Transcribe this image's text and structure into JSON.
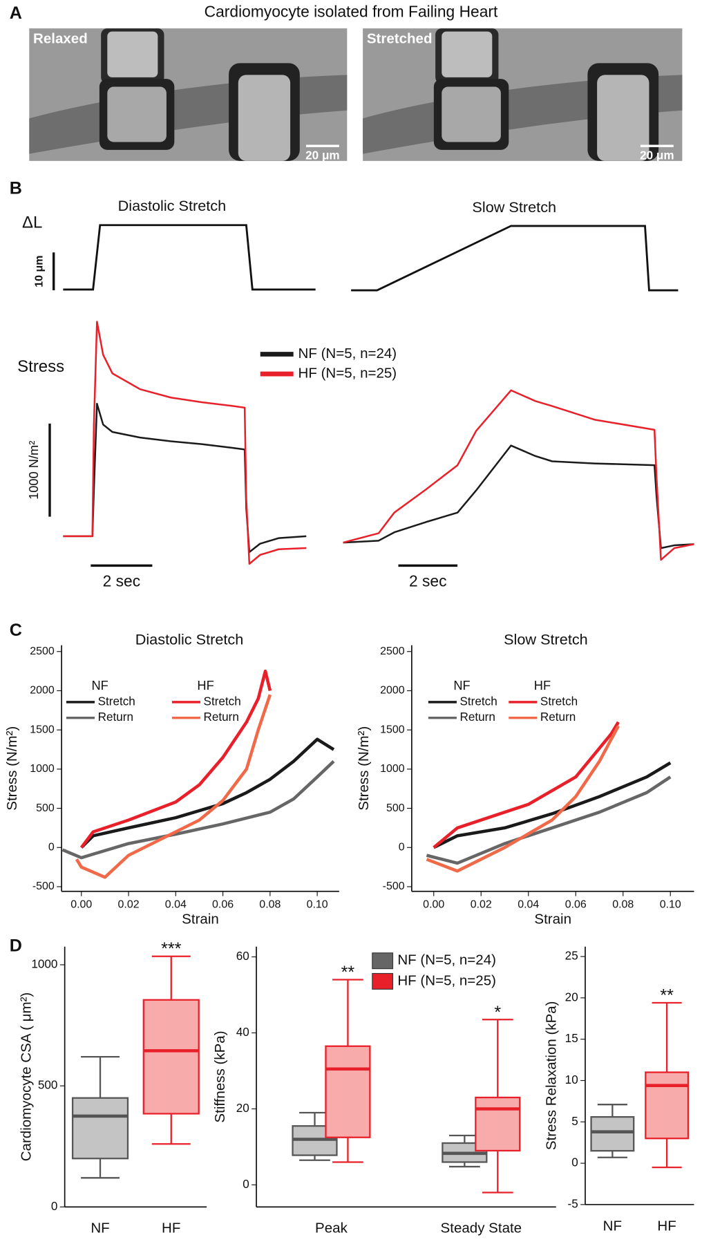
{
  "panel_letters": [
    "A",
    "B",
    "C",
    "D"
  ],
  "panel_a": {
    "title": "Cardiomyocyte isolated from Failing Heart",
    "images": [
      {
        "label": "Relaxed",
        "scale_bar": {
          "value": 20,
          "label": "20 μm"
        }
      },
      {
        "label": "Stretched",
        "scale_bar": {
          "value": 20,
          "label": "20 μm"
        }
      }
    ]
  },
  "chart_data": [
    {
      "type": "trace",
      "title": "Diastolic Stretch",
      "dl_label": "ΔL",
      "stress_label": "Stress",
      "xlim": [
        0,
        8.2
      ],
      "ylim": [
        -400,
        2600
      ],
      "dl_ylim": [
        0,
        20
      ],
      "protocol": {
        "x": [
          0,
          0.97,
          1.2,
          5.95,
          6.15,
          8.2
        ],
        "values": [
          0,
          0,
          17,
          17,
          0,
          0
        ]
      },
      "length_scale_bar": {
        "value": 10,
        "label": "10 μm"
      },
      "stress_scale_bar": {
        "value": 1000,
        "label": "1000 N/m²"
      },
      "time_scale_bar": {
        "value": 2,
        "label": "2 sec"
      },
      "series": [
        {
          "name": "NF  (N=5, n=24)",
          "color": "#1a1a1a",
          "x": [
            0,
            0.95,
            1.0,
            1.1,
            1.3,
            1.6,
            2.5,
            3.5,
            4.5,
            5.5,
            5.9,
            5.95,
            6.05,
            6.4,
            7.0,
            7.9
          ],
          "values": [
            0,
            0,
            500,
            1424,
            1200,
            1120,
            1060,
            1020,
            990,
            950,
            932,
            300,
            -170,
            -80,
            -20,
            0
          ]
        },
        {
          "name": "HF  (N=5, n=25)",
          "color": "#e8202a",
          "x": [
            0,
            0.95,
            1.0,
            1.1,
            1.3,
            1.6,
            2.5,
            3.5,
            4.5,
            5.5,
            5.9,
            5.95,
            6.05,
            6.4,
            7.0,
            7.9
          ],
          "values": [
            0,
            0,
            1200,
            2305,
            1950,
            1750,
            1580,
            1490,
            1440,
            1400,
            1381,
            400,
            -297,
            -200,
            -140,
            -127
          ]
        }
      ]
    },
    {
      "type": "trace",
      "title": "Slow Stretch",
      "xlim": [
        0,
        11.87
      ],
      "ylim": [
        -400,
        2600
      ],
      "dl_ylim": [
        0,
        20
      ],
      "protocol": {
        "x": [
          0.27,
          1.15,
          5.68,
          10.21,
          10.35,
          11.33
        ],
        "values": [
          0,
          0,
          17,
          17,
          0,
          0
        ]
      },
      "time_scale_bar": {
        "value": 2,
        "label": "2 sec"
      },
      "series": [
        {
          "color": "#1a1a1a",
          "x": [
            0,
            1.2,
            1.73,
            2.8,
            3.87,
            4.5,
            5.68,
            6.5,
            7.07,
            8.5,
            10.53,
            10.6,
            10.75,
            11.2,
            11.87
          ],
          "values": [
            0,
            20,
            110,
            220,
            322,
            560,
            1042,
            930,
            873,
            850,
            831,
            500,
            -60,
            -30,
            -17
          ]
        },
        {
          "color": "#e8202a",
          "x": [
            0,
            1.2,
            1.73,
            2.8,
            3.87,
            4.5,
            5.68,
            6.5,
            7.07,
            8.5,
            10.53,
            10.6,
            10.75,
            11.2,
            11.87
          ],
          "values": [
            0,
            100,
            322,
            570,
            831,
            1200,
            1636,
            1520,
            1466,
            1320,
            1212,
            700,
            -186,
            -60,
            -17
          ]
        }
      ]
    },
    {
      "type": "line",
      "title": "Diastolic Stretch",
      "x_label": "Strain",
      "y_label": "Stress (N/m²)",
      "xlim": [
        -0.0084,
        0.1093
      ],
      "ylim": [
        -560,
        2580
      ],
      "xticks": [
        {
          "value": 0,
          "label": "0.00"
        },
        {
          "value": 0.02,
          "label": "0.02"
        },
        {
          "value": 0.04,
          "label": "0.04"
        },
        {
          "value": 0.06,
          "label": "0.06"
        },
        {
          "value": 0.08,
          "label": "0.08"
        },
        {
          "value": 0.1,
          "label": "0.10"
        }
      ],
      "yticks": [
        -500,
        0,
        500,
        1000,
        1500,
        2000,
        2500
      ],
      "series": [
        {
          "group": "NF",
          "name": "Stretch",
          "color": "#1a1a1a",
          "x": [
            0,
            0.005,
            0.02,
            0.04,
            0.06,
            0.07,
            0.08,
            0.09,
            0.1,
            0.107
          ],
          "values": [
            0,
            150,
            250,
            380,
            560,
            700,
            870,
            1100,
            1380,
            1250
          ]
        },
        {
          "group": "NF",
          "name": "Return",
          "color": "#666666",
          "x": [
            0.107,
            0.1,
            0.09,
            0.08,
            0.06,
            0.04,
            0.02,
            0.0,
            -0.008
          ],
          "values": [
            1100,
            900,
            620,
            450,
            300,
            170,
            50,
            -130,
            -30
          ]
        },
        {
          "group": "HF",
          "name": "Stretch",
          "color": "#e8202a",
          "x": [
            0,
            0.005,
            0.02,
            0.04,
            0.05,
            0.06,
            0.07,
            0.075,
            0.078,
            0.08
          ],
          "values": [
            0,
            200,
            350,
            580,
            800,
            1150,
            1600,
            1900,
            2250,
            2000
          ]
        },
        {
          "group": "HF",
          "name": "Return",
          "color": "#f06a4a",
          "x": [
            0.08,
            0.075,
            0.07,
            0.06,
            0.05,
            0.04,
            0.02,
            0.01,
            0,
            -0.002
          ],
          "values": [
            1950,
            1500,
            1000,
            600,
            350,
            200,
            -100,
            -380,
            -250,
            -150
          ]
        }
      ]
    },
    {
      "type": "line",
      "title": "Slow Stretch",
      "x_label": "Strain",
      "y_label": "Stress (N/m²)",
      "xlim": [
        -0.0093,
        0.11
      ],
      "ylim": [
        -560,
        2580
      ],
      "xticks": [
        {
          "value": 0,
          "label": "0.00"
        },
        {
          "value": 0.02,
          "label": "0.02"
        },
        {
          "value": 0.04,
          "label": "0.04"
        },
        {
          "value": 0.06,
          "label": "0.06"
        },
        {
          "value": 0.08,
          "label": "0.08"
        },
        {
          "value": 0.1,
          "label": "0.10"
        }
      ],
      "yticks": [
        -500,
        0,
        500,
        1000,
        1500,
        2000,
        2500
      ],
      "series": [
        {
          "group": "NF",
          "name": "Stretch",
          "color": "#1a1a1a",
          "x": [
            0,
            0.01,
            0.03,
            0.05,
            0.07,
            0.09,
            0.1
          ],
          "values": [
            0,
            150,
            250,
            430,
            650,
            900,
            1080
          ]
        },
        {
          "group": "NF",
          "name": "Return",
          "color": "#666666",
          "x": [
            0.1,
            0.09,
            0.07,
            0.05,
            0.03,
            0.01,
            -0.003
          ],
          "values": [
            900,
            700,
            450,
            250,
            50,
            -200,
            -100
          ]
        },
        {
          "group": "HF",
          "name": "Stretch",
          "color": "#e8202a",
          "x": [
            0,
            0.01,
            0.03,
            0.04,
            0.06,
            0.075,
            0.078
          ],
          "values": [
            0,
            250,
            450,
            550,
            900,
            1450,
            1600
          ]
        },
        {
          "group": "HF",
          "name": "Return",
          "color": "#f06a4a",
          "x": [
            0.078,
            0.07,
            0.06,
            0.05,
            0.03,
            0.01,
            -0.003
          ],
          "values": [
            1550,
            1100,
            650,
            350,
            0,
            -300,
            -150
          ]
        }
      ]
    },
    {
      "type": "box",
      "y_label": "Cardiomyocyte CSA ( μm²)",
      "ylim": [
        0,
        1075
      ],
      "yticks": [
        0,
        500,
        1000
      ],
      "categories": [
        "NF",
        "HF"
      ],
      "series": [
        {
          "color": "#555555",
          "fill": "#c4c4c4",
          "values": [
            {
              "min": 120,
              "q1": 200,
              "median": 375,
              "q3": 450,
              "max": 620
            },
            null
          ]
        },
        {
          "color": "#e8202a",
          "fill": "#f7abab",
          "values": [
            null,
            {
              "min": 260,
              "q1": 385,
              "median": 645,
              "q3": 855,
              "max": 1035
            }
          ],
          "significance": [
            null,
            "***"
          ]
        }
      ]
    },
    {
      "type": "box",
      "y_label": "Stiffness (kPa)",
      "ylim": [
        -5.8,
        62.7
      ],
      "yticks": [
        0,
        20,
        40,
        60
      ],
      "categories": [
        "Peak",
        "Steady State"
      ],
      "series": [
        {
          "name": "NF (N=5, n=24)",
          "color": "#555555",
          "fill": "#c4c4c4",
          "values": [
            {
              "min": 6.5,
              "q1": 7.8,
              "median": 12,
              "q3": 15.5,
              "max": 19
            },
            {
              "min": 4.8,
              "q1": 6,
              "median": 8.3,
              "q3": 11,
              "max": 13
            }
          ]
        },
        {
          "name": "HF (N=5, n=25)",
          "color": "#e8202a",
          "fill": "#f7abab",
          "values": [
            {
              "min": 6,
              "q1": 12.5,
              "median": 30.5,
              "q3": 36.5,
              "max": 54
            },
            {
              "min": -2,
              "q1": 9,
              "median": 20,
              "q3": 23,
              "max": 43.5
            }
          ],
          "significance": [
            "**",
            "*"
          ]
        }
      ]
    },
    {
      "type": "box",
      "y_label": "Stress Relaxation (kPa)",
      "ylim": [
        -5,
        26.2
      ],
      "yticks": [
        -5,
        0,
        5,
        10,
        15,
        20,
        25
      ],
      "categories": [
        "NF",
        "HF"
      ],
      "series": [
        {
          "color": "#555555",
          "fill": "#c4c4c4",
          "values": [
            {
              "min": 0.7,
              "q1": 1.5,
              "median": 3.8,
              "q3": 5.6,
              "max": 7.1
            },
            null
          ]
        },
        {
          "color": "#e8202a",
          "fill": "#f7abab",
          "values": [
            null,
            {
              "min": -0.5,
              "q1": 3,
              "median": 9.4,
              "q3": 11,
              "max": 19.4
            }
          ],
          "significance": [
            null,
            "**"
          ]
        }
      ]
    }
  ]
}
